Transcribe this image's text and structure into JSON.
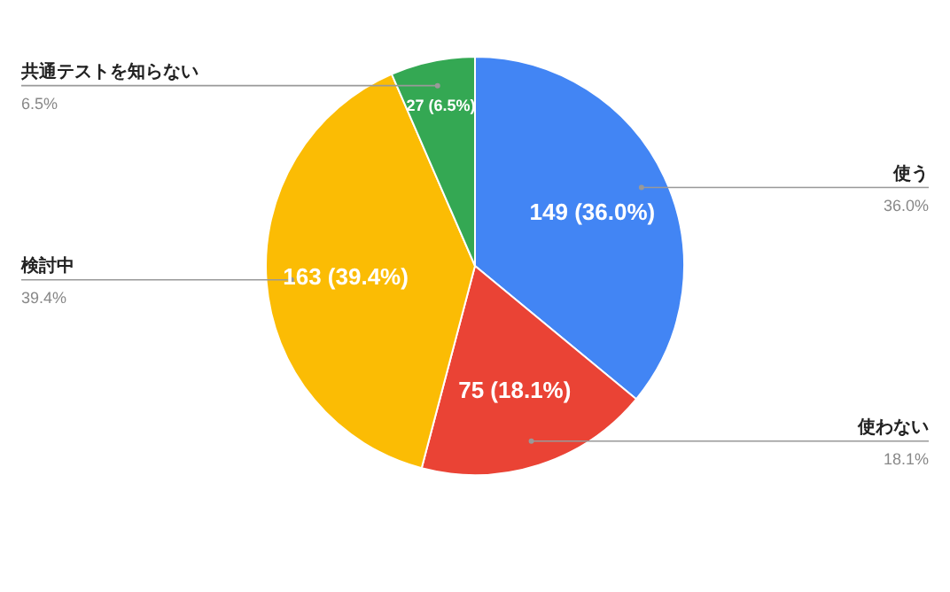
{
  "chart_data": {
    "type": "pie",
    "categories": [
      "使う",
      "使わない",
      "検討中",
      "共通テストを知らない"
    ],
    "values": [
      149,
      75,
      163,
      27
    ],
    "colors": [
      "#4285f4",
      "#ea4335",
      "#fbbc04",
      "#34a853"
    ],
    "value_labels": [
      "149 (36.0%)",
      "75 (18.1%)",
      "163 (39.4%)",
      "27 (6.5%)"
    ],
    "annotations": [
      "36.0%",
      "18.1%",
      "39.4%",
      "6.5%"
    ],
    "legend": false
  }
}
